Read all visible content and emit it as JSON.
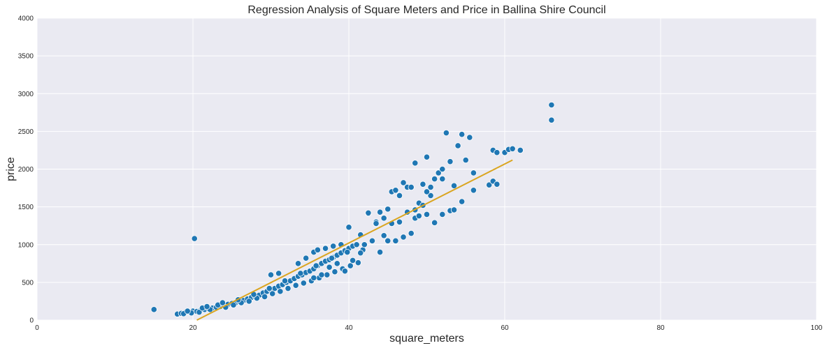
{
  "chart_data": {
    "type": "scatter",
    "title": "Regression Analysis of Square Meters and Price in Ballina Shire Council",
    "xlabel": "square_meters",
    "ylabel": "price",
    "xlim": [
      0,
      100
    ],
    "ylim": [
      0,
      4000
    ],
    "xticks": [
      0,
      20,
      40,
      60,
      80,
      100
    ],
    "yticks": [
      0,
      500,
      1000,
      1500,
      2000,
      2500,
      3000,
      3500,
      4000
    ],
    "grid": true,
    "colors": {
      "background": "#eaeaf2",
      "grid": "#ffffff",
      "points": "#1f77b4",
      "point_edge": "#ffffff",
      "regression_line": "#daa520"
    },
    "regression_line": {
      "x": [
        20.5,
        61
      ],
      "y": [
        0,
        2120
      ]
    },
    "points": [
      [
        15,
        140
      ],
      [
        20.2,
        1080
      ],
      [
        18.0,
        80
      ],
      [
        18.5,
        90
      ],
      [
        19.0,
        100
      ],
      [
        19.5,
        110
      ],
      [
        20.0,
        120
      ],
      [
        20.5,
        115
      ],
      [
        21.0,
        130
      ],
      [
        21.5,
        140
      ],
      [
        22.0,
        150
      ],
      [
        22.5,
        160
      ],
      [
        23.0,
        170
      ],
      [
        23.5,
        180
      ],
      [
        24.0,
        190
      ],
      [
        24.5,
        210
      ],
      [
        25.0,
        220
      ],
      [
        25.5,
        230
      ],
      [
        26.0,
        240
      ],
      [
        26.5,
        260
      ],
      [
        27.0,
        280
      ],
      [
        27.5,
        300
      ],
      [
        28.0,
        310
      ],
      [
        28.5,
        330
      ],
      [
        29.0,
        360
      ],
      [
        29.5,
        380
      ],
      [
        30.0,
        400
      ],
      [
        30.5,
        420
      ],
      [
        31.0,
        450
      ],
      [
        31.5,
        470
      ],
      [
        32.0,
        500
      ],
      [
        32.5,
        520
      ],
      [
        33.0,
        550
      ],
      [
        33.5,
        580
      ],
      [
        34.0,
        600
      ],
      [
        34.5,
        630
      ],
      [
        35.0,
        650
      ],
      [
        35.5,
        680
      ],
      [
        36.0,
        720
      ],
      [
        36.5,
        750
      ],
      [
        37.0,
        780
      ],
      [
        37.5,
        800
      ],
      [
        38.0,
        830
      ],
      [
        38.5,
        860
      ],
      [
        39.0,
        890
      ],
      [
        39.5,
        920
      ],
      [
        40.0,
        950
      ],
      [
        40.5,
        980
      ],
      [
        41.0,
        1000
      ],
      [
        18.8,
        85
      ],
      [
        19.8,
        95
      ],
      [
        20.8,
        105
      ],
      [
        21.2,
        160
      ],
      [
        22.2,
        140
      ],
      [
        23.2,
        200
      ],
      [
        24.2,
        170
      ],
      [
        25.2,
        200
      ],
      [
        26.2,
        230
      ],
      [
        27.2,
        250
      ],
      [
        28.2,
        290
      ],
      [
        29.2,
        310
      ],
      [
        30.2,
        350
      ],
      [
        31.2,
        380
      ],
      [
        32.2,
        420
      ],
      [
        33.2,
        460
      ],
      [
        34.2,
        490
      ],
      [
        35.2,
        520
      ],
      [
        36.2,
        560
      ],
      [
        37.2,
        600
      ],
      [
        38.2,
        640
      ],
      [
        39.2,
        680
      ],
      [
        40.2,
        720
      ],
      [
        41.2,
        760
      ],
      [
        19.3,
        120
      ],
      [
        21.8,
        180
      ],
      [
        23.8,
        230
      ],
      [
        25.8,
        270
      ],
      [
        27.8,
        340
      ],
      [
        29.8,
        420
      ],
      [
        31.8,
        520
      ],
      [
        33.8,
        620
      ],
      [
        35.8,
        720
      ],
      [
        37.8,
        820
      ],
      [
        39.8,
        900
      ],
      [
        41.8,
        930
      ],
      [
        30.0,
        600
      ],
      [
        31.0,
        620
      ],
      [
        33.5,
        750
      ],
      [
        34.5,
        820
      ],
      [
        35.5,
        900
      ],
      [
        36.0,
        930
      ],
      [
        37.0,
        950
      ],
      [
        38.0,
        980
      ],
      [
        39.0,
        1000
      ],
      [
        40.0,
        1230
      ],
      [
        41.5,
        1130
      ],
      [
        42.5,
        1410
      ],
      [
        43.5,
        1300
      ],
      [
        44.0,
        1430
      ],
      [
        44.5,
        1350
      ],
      [
        45.0,
        1470
      ],
      [
        45.5,
        1700
      ],
      [
        46.0,
        1720
      ],
      [
        46.5,
        1650
      ],
      [
        47.0,
        1820
      ],
      [
        47.5,
        1760
      ],
      [
        48.0,
        1760
      ],
      [
        48.5,
        2080
      ],
      [
        49.0,
        1550
      ],
      [
        49.5,
        1800
      ],
      [
        50.0,
        2160
      ],
      [
        50.5,
        1760
      ],
      [
        51.0,
        1870
      ],
      [
        51.5,
        1950
      ],
      [
        52.0,
        2000
      ],
      [
        52.5,
        2480
      ],
      [
        53.0,
        2100
      ],
      [
        53.5,
        1780
      ],
      [
        54.0,
        2310
      ],
      [
        54.5,
        2460
      ],
      [
        55.0,
        2120
      ],
      [
        55.5,
        2420
      ],
      [
        56.0,
        1720
      ],
      [
        58.0,
        1790
      ],
      [
        58.5,
        2250
      ],
      [
        59.0,
        2220
      ],
      [
        60.0,
        2220
      ],
      [
        60.5,
        2260
      ],
      [
        61.0,
        2270
      ],
      [
        62.0,
        2250
      ],
      [
        66.0,
        2850
      ],
      [
        66.0,
        2650
      ],
      [
        42.0,
        1000
      ],
      [
        43.0,
        1050
      ],
      [
        44.0,
        900
      ],
      [
        45.0,
        1050
      ],
      [
        46.0,
        1050
      ],
      [
        47.0,
        1100
      ],
      [
        48.0,
        1150
      ],
      [
        48.5,
        1350
      ],
      [
        49.0,
        1380
      ],
      [
        50.0,
        1400
      ],
      [
        51.0,
        1290
      ],
      [
        52.0,
        1400
      ],
      [
        53.0,
        1450
      ],
      [
        53.5,
        1460
      ],
      [
        54.5,
        1570
      ],
      [
        56.0,
        1950
      ],
      [
        58.5,
        1840
      ],
      [
        59.0,
        1800
      ],
      [
        45.5,
        1280
      ],
      [
        47.5,
        1430
      ],
      [
        49.5,
        1520
      ],
      [
        50.5,
        1650
      ],
      [
        42.5,
        1420
      ],
      [
        43.5,
        1280
      ],
      [
        44.5,
        1120
      ],
      [
        46.5,
        1300
      ],
      [
        48.5,
        1460
      ],
      [
        50.0,
        1700
      ],
      [
        52.0,
        1870
      ],
      [
        37.5,
        700
      ],
      [
        38.5,
        750
      ],
      [
        39.5,
        650
      ],
      [
        40.5,
        790
      ],
      [
        41.5,
        890
      ],
      [
        36.5,
        600
      ],
      [
        35.5,
        560
      ]
    ]
  }
}
